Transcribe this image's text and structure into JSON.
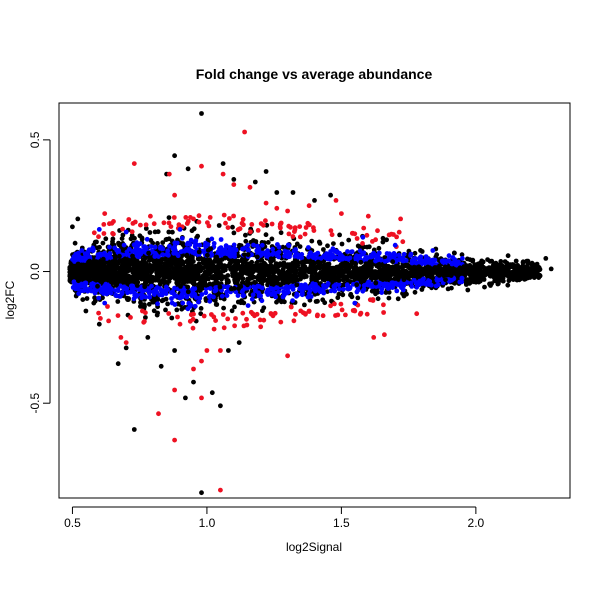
{
  "chart_data": {
    "type": "scatter",
    "title": "Fold change vs average abundance",
    "xlabel": "log2Signal",
    "ylabel": "log2FC",
    "xlim": [
      0.45,
      2.35
    ],
    "ylim": [
      -0.86,
      0.64
    ],
    "x_ticks": [
      0.5,
      1.0,
      1.5,
      2.0
    ],
    "x_tick_labels": [
      "0.5",
      "1.0",
      "1.5",
      "2.0"
    ],
    "y_ticks": [
      -0.5,
      0.0,
      0.5
    ],
    "y_tick_labels": [
      "-0.5",
      "0.0",
      "0.5"
    ],
    "grid": false,
    "legend": "none",
    "colors": {
      "black": "#000000",
      "blue": "#0000ff",
      "red": "#ee1122"
    },
    "series": [
      {
        "color": "black",
        "points": [
          [
            0.98,
            0.6
          ],
          [
            0.88,
            0.44
          ],
          [
            1.22,
            0.38
          ],
          [
            1.06,
            0.41
          ],
          [
            0.73,
            -0.6
          ],
          [
            0.98,
            -0.84
          ],
          [
            1.02,
            -0.46
          ],
          [
            1.05,
            -0.51
          ],
          [
            0.95,
            -0.42
          ],
          [
            0.88,
            -0.3
          ],
          [
            0.83,
            -0.36
          ],
          [
            0.78,
            -0.25
          ],
          [
            1.08,
            -0.3
          ],
          [
            1.1,
            0.35
          ],
          [
            1.32,
            0.3
          ],
          [
            1.46,
            0.29
          ],
          [
            0.7,
            -0.29
          ],
          [
            2.28,
            0.01
          ],
          [
            2.22,
            0.02
          ],
          [
            2.26,
            0.05
          ],
          [
            2.15,
            0.04
          ],
          [
            2.12,
            0.06
          ],
          [
            1.97,
            -0.07
          ],
          [
            1.92,
            0.07
          ],
          [
            1.12,
            -0.27
          ],
          [
            0.67,
            -0.35
          ],
          [
            0.6,
            -0.2
          ],
          [
            0.55,
            -0.15
          ],
          [
            0.5,
            0.17
          ],
          [
            0.52,
            0.2
          ],
          [
            0.92,
            -0.48
          ],
          [
            0.85,
            0.37
          ],
          [
            0.93,
            0.39
          ],
          [
            1.18,
            0.34
          ],
          [
            1.26,
            0.3
          ],
          [
            1.4,
            0.27
          ]
        ]
      },
      {
        "color": "blue",
        "points": [
          [
            1.9,
            0.06
          ],
          [
            1.84,
            0.08
          ],
          [
            1.78,
            -0.06
          ],
          [
            1.7,
            0.1
          ],
          [
            1.65,
            -0.08
          ],
          [
            1.58,
            0.13
          ],
          [
            1.55,
            -0.12
          ],
          [
            0.6,
            0.16
          ],
          [
            0.62,
            -0.12
          ],
          [
            0.7,
            0.15
          ],
          [
            0.9,
            0.16
          ],
          [
            1.95,
            0.05
          ],
          [
            1.86,
            -0.05
          ]
        ]
      },
      {
        "color": "red",
        "points": [
          [
            1.14,
            0.53
          ],
          [
            0.98,
            0.4
          ],
          [
            1.06,
            0.37
          ],
          [
            0.86,
            0.37
          ],
          [
            0.73,
            0.41
          ],
          [
            0.88,
            0.29
          ],
          [
            1.1,
            0.33
          ],
          [
            0.82,
            -0.54
          ],
          [
            0.88,
            -0.64
          ],
          [
            1.05,
            -0.83
          ],
          [
            0.88,
            -0.45
          ],
          [
            0.98,
            -0.34
          ],
          [
            0.98,
            -0.48
          ],
          [
            0.95,
            -0.37
          ],
          [
            1.0,
            -0.3
          ],
          [
            1.05,
            -0.3
          ],
          [
            1.3,
            -0.32
          ],
          [
            1.38,
            0.25
          ],
          [
            1.48,
            0.27
          ],
          [
            1.5,
            0.22
          ],
          [
            1.6,
            0.21
          ],
          [
            1.62,
            -0.25
          ],
          [
            1.66,
            -0.24
          ],
          [
            1.72,
            0.2
          ],
          [
            1.78,
            -0.16
          ],
          [
            0.68,
            -0.25
          ],
          [
            0.7,
            -0.27
          ],
          [
            0.62,
            0.22
          ],
          [
            1.26,
            0.24
          ],
          [
            1.16,
            0.32
          ],
          [
            1.22,
            0.26
          ],
          [
            1.2,
            -0.21
          ],
          [
            1.38,
            -0.15
          ],
          [
            1.46,
            -0.13
          ],
          [
            1.3,
            0.23
          ],
          [
            0.79,
            0.21
          ],
          [
            0.76,
            -0.15
          ],
          [
            0.95,
            0.2
          ],
          [
            0.9,
            -0.2
          ],
          [
            1.55,
            -0.15
          ]
        ]
      }
    ],
    "density_band": {
      "description_note": "",
      "black_center": [
        [
          0.5,
          0.0,
          0.1
        ],
        [
          0.6,
          0.0,
          0.13
        ],
        [
          0.7,
          0.0,
          0.15
        ],
        [
          0.8,
          0.0,
          0.16
        ],
        [
          0.9,
          0.0,
          0.17
        ],
        [
          1.0,
          0.0,
          0.17
        ],
        [
          1.1,
          0.0,
          0.16
        ],
        [
          1.2,
          0.0,
          0.15
        ],
        [
          1.3,
          0.0,
          0.14
        ],
        [
          1.4,
          0.0,
          0.13
        ],
        [
          1.5,
          0.0,
          0.12
        ],
        [
          1.6,
          0.0,
          0.11
        ],
        [
          1.7,
          0.0,
          0.1
        ],
        [
          1.8,
          0.0,
          0.08
        ],
        [
          1.9,
          0.0,
          0.07
        ],
        [
          2.0,
          0.0,
          0.06
        ],
        [
          2.1,
          0.0,
          0.05
        ],
        [
          2.2,
          0.0,
          0.04
        ]
      ]
    }
  }
}
